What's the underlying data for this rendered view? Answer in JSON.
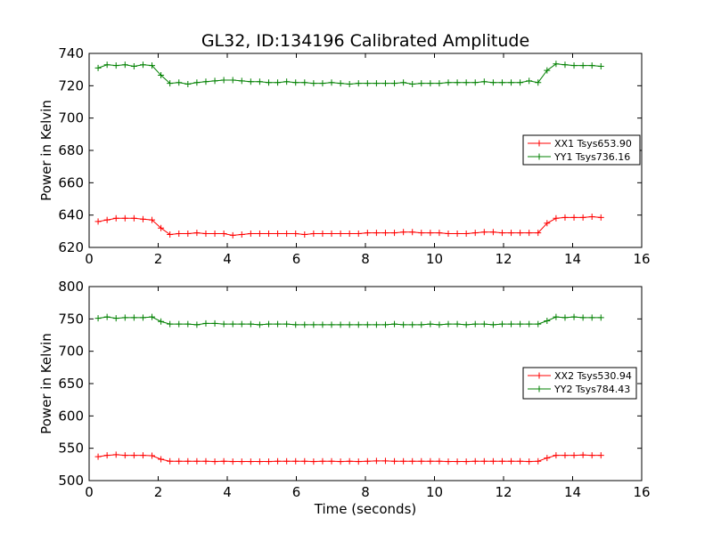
{
  "chart_data": [
    {
      "type": "line",
      "title": "GL32, ID:134196 Calibrated Amplitude",
      "xlabel": "",
      "ylabel": "Power in Kelvin",
      "xlim": [
        0,
        16
      ],
      "ylim": [
        620,
        740
      ],
      "xticks": [
        0,
        2,
        4,
        6,
        8,
        10,
        12,
        14,
        16
      ],
      "yticks": [
        620,
        640,
        660,
        680,
        700,
        720,
        740
      ],
      "legend_position": "center-right",
      "grid": false,
      "x": [
        0.26,
        0.52,
        0.78,
        1.04,
        1.3,
        1.56,
        1.82,
        2.08,
        2.34,
        2.6,
        2.86,
        3.12,
        3.38,
        3.64,
        3.9,
        4.16,
        4.42,
        4.68,
        4.94,
        5.2,
        5.46,
        5.72,
        5.98,
        6.24,
        6.5,
        6.76,
        7.02,
        7.28,
        7.54,
        7.8,
        8.06,
        8.32,
        8.58,
        8.84,
        9.1,
        9.36,
        9.62,
        9.88,
        10.14,
        10.4,
        10.66,
        10.92,
        11.18,
        11.44,
        11.7,
        11.96,
        12.22,
        12.48,
        12.74,
        13.0,
        13.26,
        13.52,
        13.78,
        14.04,
        14.3,
        14.56,
        14.82
      ],
      "series": [
        {
          "name": "XX1 Tsys653.90",
          "color": "#ff0000",
          "values": [
            636,
            637,
            638,
            638,
            638,
            637.5,
            637,
            632,
            628,
            628.5,
            628.5,
            629,
            628.5,
            628.5,
            628.5,
            627.5,
            628,
            628.5,
            628.5,
            628.5,
            628.5,
            628.5,
            628.5,
            628,
            628.5,
            628.5,
            628.5,
            628.5,
            628.5,
            628.5,
            629,
            629,
            629,
            629,
            629.5,
            629.5,
            629,
            629,
            629,
            628.5,
            628.5,
            628.5,
            629,
            629.5,
            629.5,
            629,
            629,
            629,
            629,
            629,
            635,
            638,
            638.5,
            638.5,
            638.5,
            639,
            638.5
          ]
        },
        {
          "name": "YY1 Tsys736.16",
          "color": "#008000",
          "values": [
            731,
            733,
            732.5,
            733,
            732,
            733,
            732.5,
            726.5,
            721.5,
            722,
            721,
            722,
            722.5,
            723,
            723.5,
            723.5,
            723,
            722.5,
            722.5,
            722,
            722,
            722.5,
            722,
            722,
            721.5,
            721.5,
            722,
            721.5,
            721,
            721.5,
            721.5,
            721.5,
            721.5,
            721.5,
            722,
            721,
            721.5,
            721.5,
            721.5,
            722,
            722,
            722,
            722,
            722.5,
            722,
            722,
            722,
            722,
            723,
            722,
            729.5,
            733.5,
            733,
            732.5,
            732.5,
            732.5,
            732
          ]
        }
      ]
    },
    {
      "type": "line",
      "title": "",
      "xlabel": "Time (seconds)",
      "ylabel": "Power in Kelvin",
      "xlim": [
        0,
        16
      ],
      "ylim": [
        500,
        800
      ],
      "xticks": [
        0,
        2,
        4,
        6,
        8,
        10,
        12,
        14,
        16
      ],
      "yticks": [
        500,
        550,
        600,
        650,
        700,
        750,
        800
      ],
      "legend_position": "center-right",
      "grid": false,
      "x": [
        0.26,
        0.52,
        0.78,
        1.04,
        1.3,
        1.56,
        1.82,
        2.08,
        2.34,
        2.6,
        2.86,
        3.12,
        3.38,
        3.64,
        3.9,
        4.16,
        4.42,
        4.68,
        4.94,
        5.2,
        5.46,
        5.72,
        5.98,
        6.24,
        6.5,
        6.76,
        7.02,
        7.28,
        7.54,
        7.8,
        8.06,
        8.32,
        8.58,
        8.84,
        9.1,
        9.36,
        9.62,
        9.88,
        10.14,
        10.4,
        10.66,
        10.92,
        11.18,
        11.44,
        11.7,
        11.96,
        12.22,
        12.48,
        12.74,
        13.0,
        13.26,
        13.52,
        13.78,
        14.04,
        14.3,
        14.56,
        14.82
      ],
      "series": [
        {
          "name": "XX2 Tsys530.94",
          "color": "#ff0000",
          "values": [
            537,
            539,
            540,
            539,
            539,
            539,
            538.5,
            533,
            530,
            530,
            530,
            530,
            530,
            529.5,
            530,
            529.5,
            529.5,
            529.5,
            529.5,
            529.5,
            530,
            530,
            530,
            530,
            529.5,
            530,
            530,
            529.5,
            530,
            529.5,
            530,
            530.5,
            530.5,
            530,
            530,
            530,
            530,
            530,
            530,
            529.5,
            529.5,
            529.5,
            530,
            530,
            530,
            530,
            530,
            530,
            529.5,
            530,
            535,
            539,
            539,
            539,
            539.5,
            539,
            539
          ]
        },
        {
          "name": "YY2 Tsys784.43",
          "color": "#008000",
          "values": [
            751,
            753,
            751,
            752,
            752,
            752,
            753,
            746,
            742,
            742,
            742,
            741,
            743,
            743,
            742,
            742,
            742,
            742,
            741,
            742,
            742,
            742,
            741,
            741,
            741,
            741,
            741,
            741,
            741,
            741,
            741,
            741,
            741,
            742,
            741,
            741,
            741,
            742,
            741,
            742,
            742,
            741,
            742,
            742,
            741,
            742,
            742,
            742,
            742,
            742,
            747,
            753,
            752,
            753,
            752,
            752,
            752
          ]
        }
      ]
    }
  ]
}
